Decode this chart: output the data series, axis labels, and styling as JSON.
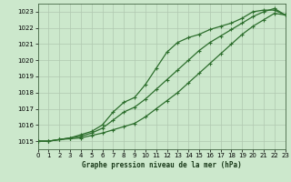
{
  "background_color": "#cce8cc",
  "grid_color": "#b0c8b0",
  "line_color": "#2d6e2d",
  "title": "Graphe pression niveau de la mer (hPa)",
  "xlim": [
    0,
    23
  ],
  "ylim": [
    1014.5,
    1023.5
  ],
  "yticks": [
    1015,
    1016,
    1017,
    1018,
    1019,
    1020,
    1021,
    1022,
    1023
  ],
  "xticks": [
    0,
    1,
    2,
    3,
    4,
    5,
    6,
    7,
    8,
    9,
    10,
    11,
    12,
    13,
    14,
    15,
    16,
    17,
    18,
    19,
    20,
    21,
    22,
    23
  ],
  "series1_x": [
    0,
    1,
    2,
    3,
    4,
    5,
    6,
    7,
    8,
    9,
    10,
    11,
    12,
    13,
    14,
    15,
    16,
    17,
    18,
    19,
    20,
    21,
    22,
    23
  ],
  "series1_y": [
    1015.0,
    1015.0,
    1015.1,
    1015.15,
    1015.2,
    1015.35,
    1015.5,
    1015.7,
    1015.9,
    1016.1,
    1016.5,
    1017.0,
    1017.5,
    1018.0,
    1018.6,
    1019.2,
    1019.8,
    1020.4,
    1021.0,
    1021.6,
    1022.1,
    1022.5,
    1022.9,
    1022.8
  ],
  "series2_x": [
    0,
    1,
    2,
    3,
    4,
    5,
    6,
    7,
    8,
    9,
    10,
    11,
    12,
    13,
    14,
    15,
    16,
    17,
    18,
    19,
    20,
    21,
    22,
    23
  ],
  "series2_y": [
    1015.0,
    1015.0,
    1015.1,
    1015.2,
    1015.4,
    1015.6,
    1016.0,
    1016.8,
    1017.4,
    1017.7,
    1018.5,
    1019.5,
    1020.5,
    1021.1,
    1021.4,
    1021.6,
    1021.9,
    1022.1,
    1022.3,
    1022.6,
    1023.0,
    1023.1,
    1023.1,
    1022.8
  ],
  "series3_x": [
    0,
    1,
    2,
    3,
    4,
    5,
    6,
    7,
    8,
    9,
    10,
    11,
    12,
    13,
    14,
    15,
    16,
    17,
    18,
    19,
    20,
    21,
    22,
    23
  ],
  "series3_y": [
    1015.0,
    1015.0,
    1015.1,
    1015.2,
    1015.3,
    1015.5,
    1015.8,
    1016.3,
    1016.8,
    1017.1,
    1017.6,
    1018.2,
    1018.8,
    1019.4,
    1020.0,
    1020.6,
    1021.1,
    1021.5,
    1021.9,
    1022.3,
    1022.7,
    1023.0,
    1023.2,
    1022.8
  ]
}
